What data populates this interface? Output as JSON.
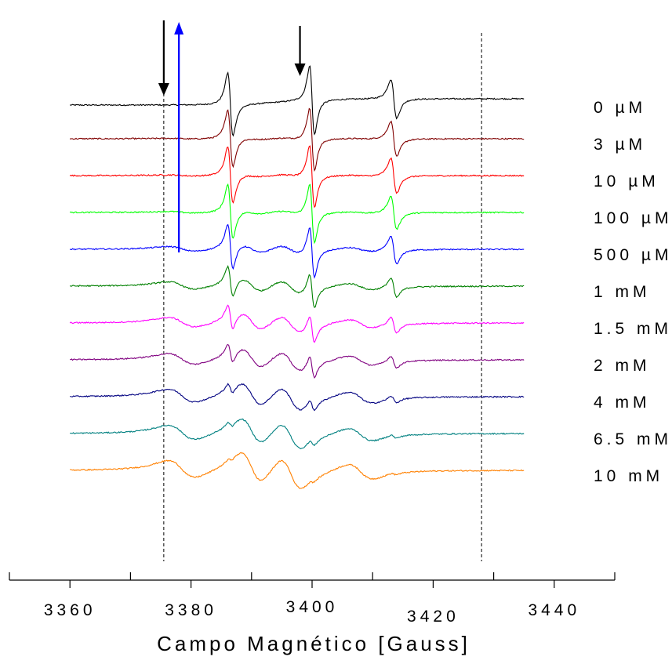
{
  "chart_data": {
    "type": "line",
    "xlabel": "Campo Magnético [Gauss]",
    "xlim": [
      3350,
      3450
    ],
    "x_ticks": [
      3360,
      3380,
      3400,
      3420,
      3440
    ],
    "x_minor_ticks": [
      3350,
      3370,
      3390,
      3410,
      3430,
      3450
    ],
    "x_range": [
      3360,
      3435
    ],
    "reference_lines_x": [
      3375.5,
      3428
    ],
    "peak_positions_x": [
      3386.5,
      3400,
      3413.5
    ],
    "grid": false,
    "legend": "right",
    "series": [
      {
        "name": "0 µM",
        "color": "#000000",
        "nitroxide_amplitude": 1.0,
        "broad_component": 0.0
      },
      {
        "name": "3 µM",
        "color": "#800000",
        "nitroxide_amplitude": 0.9,
        "broad_component": 0.05
      },
      {
        "name": "10 µM",
        "color": "#ff0000",
        "nitroxide_amplitude": 0.9,
        "broad_component": 0.08
      },
      {
        "name": "100 µM",
        "color": "#00ff00",
        "nitroxide_amplitude": 0.85,
        "broad_component": 0.12
      },
      {
        "name": "500 µM",
        "color": "#0000ff",
        "nitroxide_amplitude": 0.72,
        "broad_component": 0.35
      },
      {
        "name": "1 mM",
        "color": "#008000",
        "nitroxide_amplitude": 0.5,
        "broad_component": 0.55
      },
      {
        "name": "1.5 mM",
        "color": "#ff00ff",
        "nitroxide_amplitude": 0.4,
        "broad_component": 0.7
      },
      {
        "name": "2 mM",
        "color": "#800080",
        "nitroxide_amplitude": 0.32,
        "broad_component": 0.8
      },
      {
        "name": "4 mM",
        "color": "#000080",
        "nitroxide_amplitude": 0.18,
        "broad_component": 0.95
      },
      {
        "name": "6.5 mM",
        "color": "#008080",
        "nitroxide_amplitude": 0.1,
        "broad_component": 1.05
      },
      {
        "name": "10 mM",
        "color": "#ff8000",
        "nitroxide_amplitude": 0.05,
        "broad_component": 1.25
      }
    ],
    "annotations": [
      {
        "type": "arrow-down",
        "color": "#000000",
        "x": 3375.5
      },
      {
        "type": "arrow-up",
        "color": "#0000ff",
        "x": 3378
      },
      {
        "type": "arrow-down",
        "color": "#000000",
        "x": 3398
      }
    ]
  }
}
